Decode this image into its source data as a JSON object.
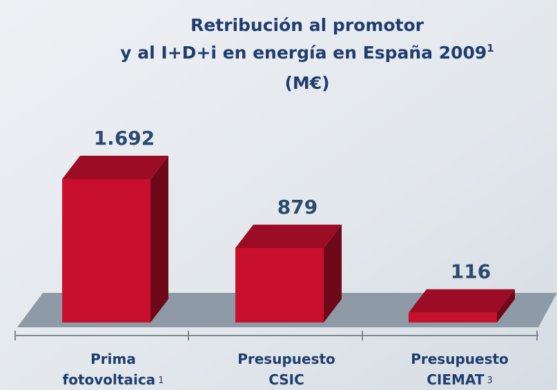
{
  "chart_data": {
    "type": "bar3d",
    "title": [
      "Retribución al promotor",
      "y al I+D+i en energía en España 2009"
    ],
    "title_note": "1",
    "subtitle": "(M€)",
    "categories": [
      "Prima fotovoltaica",
      "Presupuesto CSIC",
      "Presupuesto CIEMAT"
    ],
    "category_notes": [
      "1",
      null,
      "3"
    ],
    "values": [
      1692,
      879,
      116
    ],
    "value_labels": [
      "1.692",
      "879",
      "116"
    ],
    "color": "#c8102e"
  }
}
